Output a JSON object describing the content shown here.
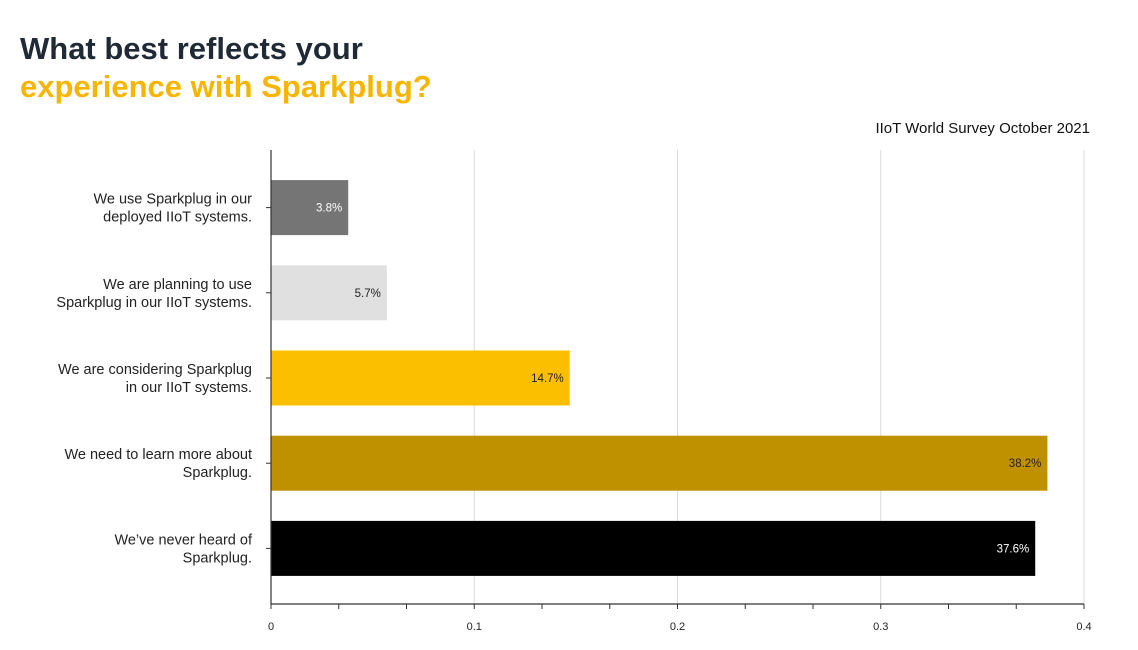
{
  "header": {
    "title_line1": "What best reflects your",
    "title_line2": "experience with Sparkplug?",
    "source": "IIoT World Survey October 2021"
  },
  "chart_data": {
    "type": "bar",
    "orientation": "horizontal",
    "categories": [
      [
        "We use Sparkplug in our",
        "deployed IIoT systems."
      ],
      [
        "We are planning to use",
        "Sparkplug in our IIoT systems."
      ],
      [
        "We are considering Sparkplug",
        "in our IIoT systems."
      ],
      [
        "We need to learn more about",
        "Sparkplug."
      ],
      [
        "We’ve never heard of",
        "Sparkplug."
      ]
    ],
    "values": [
      0.038,
      0.057,
      0.147,
      0.382,
      0.376
    ],
    "data_labels": [
      "3.8%",
      "5.7%",
      "14.7%",
      "38.2%",
      "37.6%"
    ],
    "colors": [
      "#757575",
      "#e0e0e0",
      "#fbbf00",
      "#bf9000",
      "#000000"
    ],
    "label_colors": [
      "#ffffff",
      "#222222",
      "#222222",
      "#222222",
      "#ffffff"
    ],
    "xlim": [
      0,
      0.4
    ],
    "xticks": [
      0,
      0.1,
      0.2,
      0.3,
      0.4
    ],
    "xtick_labels": [
      "0",
      "0.1",
      "0.2",
      "0.3",
      "0.4"
    ],
    "grid": true,
    "legend": false
  }
}
